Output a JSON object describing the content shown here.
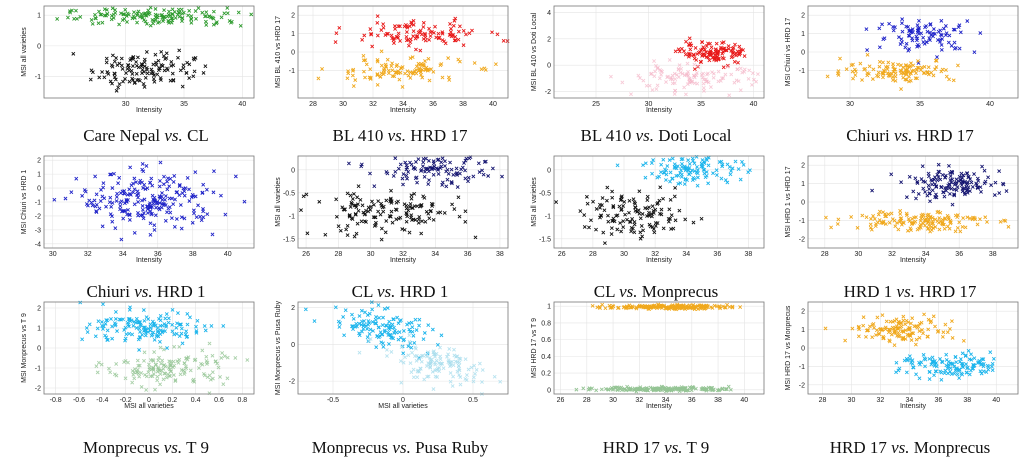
{
  "figure": {
    "colors": {
      "green": "#2e9b2e",
      "black": "#111111",
      "red": "#e81818",
      "orange": "#f0a81c",
      "pink": "#f3b4c6",
      "blue": "#1e22c8",
      "navy": "#141470",
      "cyan": "#1ab4ec",
      "lightgreen": "#94c494",
      "lightcyan": "#a6dcec"
    }
  },
  "chart_data": [
    {
      "type": "scatter",
      "caption": {
        "left": "Care Nepal",
        "vs": "vs.",
        "right": "CL"
      },
      "xlabel": "Intensity",
      "ylabel": "MSI all varieties",
      "xlim": [
        23,
        41
      ],
      "ylim": [
        -1.7,
        1.3
      ],
      "xticks": [
        30,
        35,
        40
      ],
      "yticks": [
        -1,
        0,
        1
      ],
      "series": [
        {
          "color": "green",
          "opacity": 1,
          "n": 160,
          "x_mean": 33,
          "x_sd": 4.2,
          "y_mean": 0.95,
          "y_sd": 0.14
        },
        {
          "color": "black",
          "opacity": 1,
          "n": 130,
          "x_mean": 31.5,
          "x_sd": 2.2,
          "y_mean": -0.75,
          "y_sd": 0.3
        }
      ]
    },
    {
      "type": "scatter",
      "caption": {
        "left": "BL 410",
        "vs": "vs.",
        "right": "HRD 17"
      },
      "xlabel": "Intensity",
      "ylabel": "MSI BL 410 vs HRD 17",
      "xlim": [
        27,
        41
      ],
      "ylim": [
        -2.5,
        2.5
      ],
      "xticks": [
        28,
        30,
        32,
        34,
        36,
        38,
        40
      ],
      "yticks": [
        -1,
        0,
        1,
        2
      ],
      "series": [
        {
          "color": "red",
          "opacity": 1,
          "n": 110,
          "x_mean": 35,
          "x_sd": 2.2,
          "y_mean": 1.0,
          "y_sd": 0.35
        },
        {
          "color": "orange",
          "opacity": 1,
          "n": 110,
          "x_mean": 33.5,
          "x_sd": 2.3,
          "y_mean": -1.0,
          "y_sd": 0.35
        }
      ]
    },
    {
      "type": "scatter",
      "caption": {
        "left": "BL 410",
        "vs": "vs.",
        "right": "Doti Local"
      },
      "xlabel": "Intensity",
      "ylabel": "MSI BL 410 vs Doti Local",
      "xlim": [
        21,
        41
      ],
      "ylim": [
        -2.5,
        4.5
      ],
      "xticks": [
        25,
        30,
        35,
        40
      ],
      "yticks": [
        -2,
        0,
        2,
        4
      ],
      "series": [
        {
          "color": "red",
          "opacity": 1,
          "n": 120,
          "x_mean": 36.3,
          "x_sd": 1.6,
          "y_mean": 0.9,
          "y_sd": 0.4
        },
        {
          "color": "pink",
          "opacity": 0.7,
          "n": 120,
          "x_mean": 34,
          "x_sd": 3.5,
          "y_mean": -1.0,
          "y_sd": 0.5
        }
      ]
    },
    {
      "type": "scatter",
      "caption": {
        "left": "Chiuri",
        "vs": "vs.",
        "right": "HRD 17"
      },
      "xlabel": "",
      "ylabel": "MSI Chiuri vs HRD 17",
      "xlim": [
        27,
        42
      ],
      "ylim": [
        -2.5,
        2.5
      ],
      "xticks": [
        30,
        35,
        40
      ],
      "yticks": [
        -1,
        0,
        1,
        2
      ],
      "series": [
        {
          "color": "blue",
          "opacity": 1,
          "n": 100,
          "x_mean": 35.5,
          "x_sd": 1.8,
          "y_mean": 0.9,
          "y_sd": 0.45
        },
        {
          "color": "orange",
          "opacity": 1,
          "n": 120,
          "x_mean": 33.5,
          "x_sd": 2.0,
          "y_mean": -1.0,
          "y_sd": 0.3
        }
      ]
    },
    {
      "type": "scatter",
      "caption": {
        "left": "Chiuri",
        "vs": "vs.",
        "right": "HRD 1"
      },
      "xlabel": "Intensity",
      "ylabel": "MSI Chiuri vs HRD 1",
      "xlim": [
        29.5,
        41.5
      ],
      "ylim": [
        -4.3,
        2.3
      ],
      "xticks": [
        30,
        32,
        34,
        36,
        38,
        40
      ],
      "yticks": [
        -4,
        -3,
        -2,
        -1,
        0,
        1,
        2
      ],
      "series": [
        {
          "color": "blue",
          "opacity": 1,
          "n": 230,
          "x_mean": 35.5,
          "x_sd": 2.0,
          "y_mean": -0.9,
          "y_sd": 1.0
        }
      ]
    },
    {
      "type": "scatter",
      "caption": {
        "left": "CL",
        "vs": "vs.",
        "right": "HRD 1"
      },
      "xlabel": "Intensity",
      "ylabel": "MSI all varieties",
      "xlim": [
        25.5,
        38.5
      ],
      "ylim": [
        -1.7,
        0.3
      ],
      "xticks": [
        26,
        28,
        30,
        32,
        34,
        36,
        38
      ],
      "yticks": [
        -1.5,
        -1,
        -0.5,
        0
      ],
      "series": [
        {
          "color": "navy",
          "opacity": 1,
          "n": 120,
          "x_mean": 34,
          "x_sd": 1.8,
          "y_mean": 0.0,
          "y_sd": 0.18
        },
        {
          "color": "black",
          "opacity": 1,
          "n": 150,
          "x_mean": 31,
          "x_sd": 2.3,
          "y_mean": -0.95,
          "y_sd": 0.25
        }
      ]
    },
    {
      "type": "scatter",
      "caption": {
        "left": "CL",
        "vs": "vs.",
        "right": "Monprecus"
      },
      "xlabel": "Intensity",
      "ylabel": "MSI all varieties",
      "xlim": [
        25.5,
        39
      ],
      "ylim": [
        -1.7,
        0.3
      ],
      "xticks": [
        26,
        28,
        30,
        32,
        34,
        36,
        38
      ],
      "yticks": [
        -1.5,
        -1,
        -0.5,
        0
      ],
      "series": [
        {
          "color": "cyan",
          "opacity": 1,
          "n": 130,
          "x_mean": 34.5,
          "x_sd": 1.6,
          "y_mean": 0.05,
          "y_sd": 0.18
        },
        {
          "color": "black",
          "opacity": 1,
          "n": 130,
          "x_mean": 30.8,
          "x_sd": 1.7,
          "y_mean": -1.0,
          "y_sd": 0.25
        }
      ]
    },
    {
      "type": "scatter",
      "caption": {
        "left": "HRD 1",
        "vs": "vs.",
        "right": "HRD 17"
      },
      "xlabel": "Intensity",
      "ylabel": "MSI HRD 1 vs HRD 17",
      "xlim": [
        27,
        39.5
      ],
      "ylim": [
        -2.5,
        2.5
      ],
      "xticks": [
        28,
        30,
        32,
        34,
        36,
        38
      ],
      "yticks": [
        -2,
        -1,
        0,
        1,
        2
      ],
      "series": [
        {
          "color": "navy",
          "opacity": 1,
          "n": 140,
          "x_mean": 35.5,
          "x_sd": 1.5,
          "y_mean": 1.0,
          "y_sd": 0.4
        },
        {
          "color": "orange",
          "opacity": 1,
          "n": 150,
          "x_mean": 33.5,
          "x_sd": 2.0,
          "y_mean": -1.0,
          "y_sd": 0.3
        }
      ]
    },
    {
      "type": "scatter",
      "caption": {
        "left": "Monprecus",
        "vs": "vs.",
        "right": "T 9"
      },
      "xlabel": "MSI all varieties",
      "ylabel": "MSI Monprecus vs T 9",
      "xlim": [
        -0.9,
        0.9
      ],
      "ylim": [
        -2.3,
        2.3
      ],
      "xticks": [
        -0.8,
        -0.6,
        -0.4,
        -0.2,
        0,
        0.2,
        0.4,
        0.6,
        0.8
      ],
      "yticks": [
        -2,
        -1,
        0,
        1,
        2
      ],
      "series": [
        {
          "color": "cyan",
          "opacity": 1,
          "n": 150,
          "x_mean": 0.0,
          "x_sd": 0.25,
          "y_mean": 1.0,
          "y_sd": 0.4
        },
        {
          "color": "lightgreen",
          "opacity": 0.8,
          "n": 150,
          "x_mean": 0.15,
          "x_sd": 0.25,
          "y_mean": -1.0,
          "y_sd": 0.45
        }
      ]
    },
    {
      "type": "scatter",
      "caption": {
        "left": "Monprecus",
        "vs": "vs.",
        "right": "Pusa Ruby"
      },
      "xlabel": "MSI all varieties",
      "ylabel": "MSI Monprecus vs Pusa Ruby",
      "xlim": [
        -0.75,
        0.75
      ],
      "ylim": [
        -2.7,
        2.3
      ],
      "xticks": [
        -0.5,
        0,
        0.5
      ],
      "yticks": [
        -2,
        0,
        2
      ],
      "series": [
        {
          "color": "cyan",
          "opacity": 1,
          "n": 130,
          "x_mean": -0.15,
          "x_sd": 0.18,
          "y_mean": 0.9,
          "y_sd": 0.5,
          "slope": -1.5
        },
        {
          "color": "lightcyan",
          "opacity": 0.8,
          "n": 130,
          "x_mean": 0.25,
          "x_sd": 0.2,
          "y_mean": -1.1,
          "y_sd": 0.5,
          "slope": -1.5
        }
      ]
    },
    {
      "type": "scatter",
      "caption": {
        "left": "HRD 17",
        "vs": "vs.",
        "right": "T 9"
      },
      "xlabel": "Intensity",
      "ylabel": "MSI HRD 17 vs T 9",
      "xlim": [
        25.5,
        41.5
      ],
      "ylim": [
        -0.05,
        1.05
      ],
      "xticks": [
        26,
        28,
        30,
        32,
        34,
        36,
        38,
        40
      ],
      "yticks": [
        0,
        0.2,
        0.4,
        0.6,
        0.8,
        1
      ],
      "series": [
        {
          "color": "orange",
          "opacity": 1,
          "n": 180,
          "x_mean": 34,
          "x_sd": 2.3,
          "y_mean": 0.99,
          "y_sd": 0.012
        },
        {
          "color": "lightgreen",
          "opacity": 1,
          "n": 180,
          "x_mean": 34,
          "x_sd": 2.5,
          "y_mean": 0.01,
          "y_sd": 0.012
        }
      ]
    },
    {
      "type": "scatter",
      "caption": {
        "left": "HRD 17",
        "vs": "vs.",
        "right": "Monprecus"
      },
      "xlabel": "Intensity",
      "ylabel": "MSI HRD 17 vs Monprecus",
      "xlim": [
        27,
        41.5
      ],
      "ylim": [
        -2.5,
        2.5
      ],
      "xticks": [
        28,
        30,
        32,
        34,
        36,
        38,
        40
      ],
      "yticks": [
        -2,
        -1,
        0,
        1,
        2
      ],
      "series": [
        {
          "color": "orange",
          "opacity": 1,
          "n": 130,
          "x_mean": 33.5,
          "x_sd": 1.8,
          "y_mean": 1.0,
          "y_sd": 0.35
        },
        {
          "color": "cyan",
          "opacity": 1,
          "n": 130,
          "x_mean": 37,
          "x_sd": 1.8,
          "y_mean": -1.0,
          "y_sd": 0.35
        }
      ]
    }
  ]
}
